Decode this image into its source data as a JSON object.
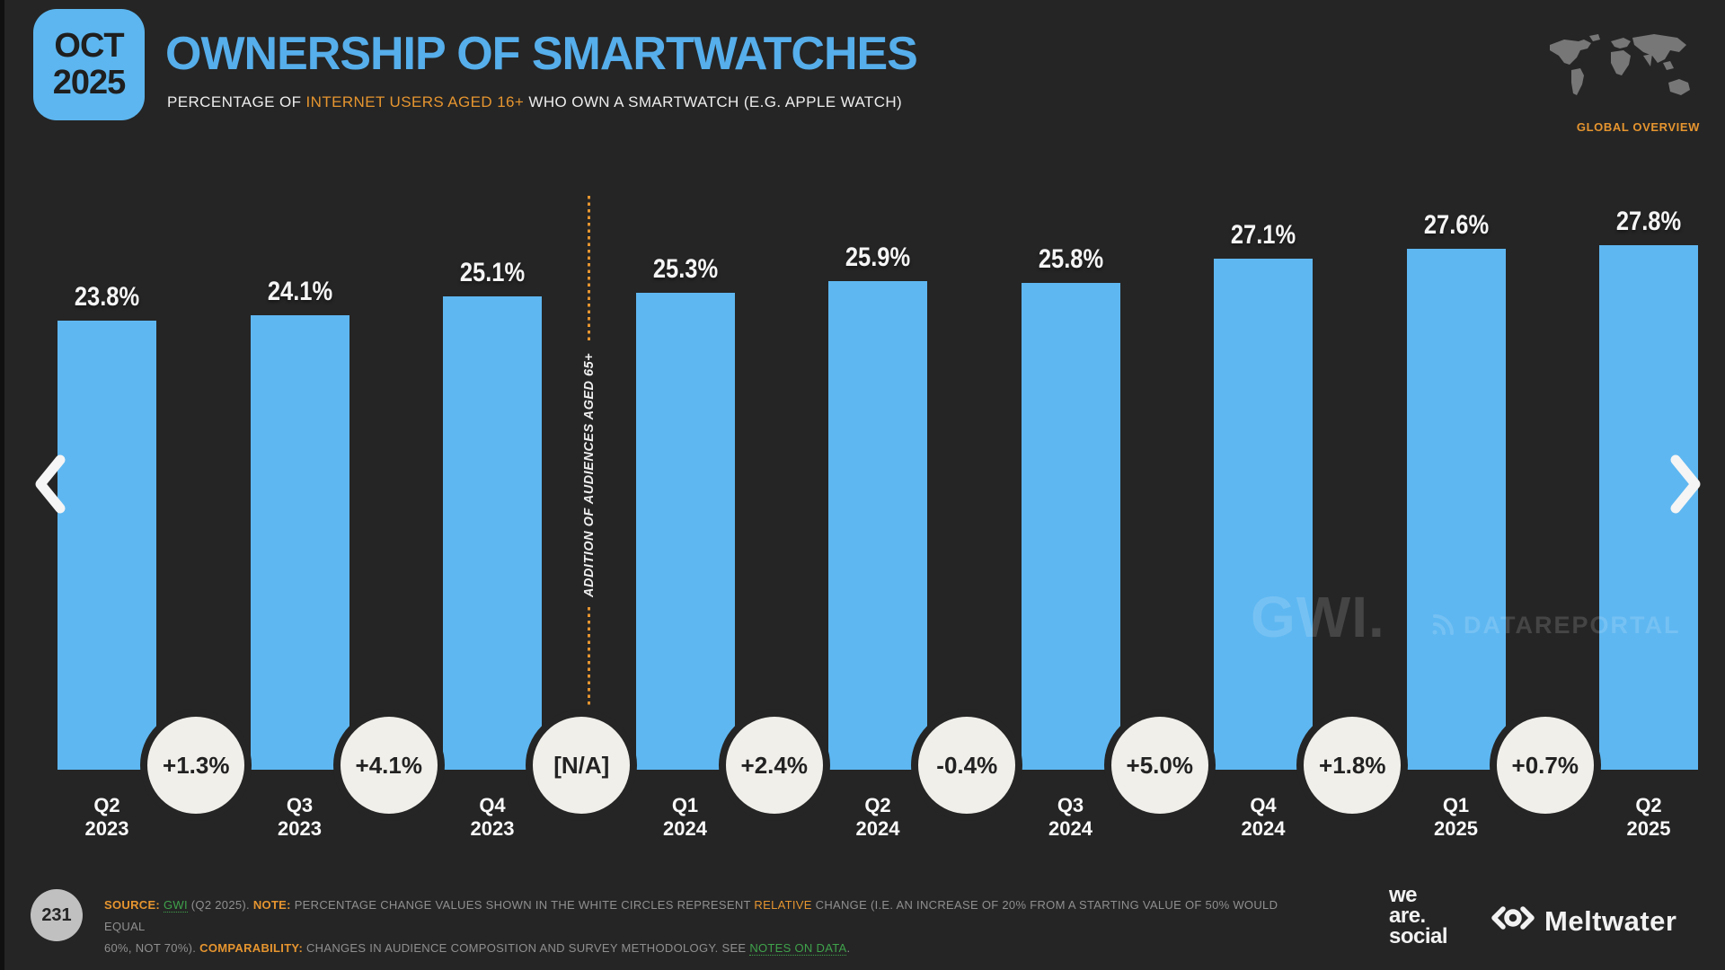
{
  "slide": {
    "badge": {
      "month": "OCT",
      "year": "2025"
    },
    "title": "OWNERSHIP OF SMARTWATCHES",
    "subtitle": {
      "prefix": "PERCENTAGE OF ",
      "highlight": "INTERNET USERS AGED 16+",
      "suffix": " WHO OWN A SMARTWATCH (E.G. APPLE WATCH)"
    },
    "region_label": "GLOBAL OVERVIEW",
    "page_number": "231"
  },
  "chart_data": {
    "type": "bar",
    "title": "OWNERSHIP OF SMARTWATCHES",
    "subtitle": "PERCENTAGE OF INTERNET USERS AGED 16+ WHO OWN A SMARTWATCH (E.G. APPLE WATCH)",
    "categories": [
      "Q2 2023",
      "Q3 2023",
      "Q4 2023",
      "Q1 2024",
      "Q2 2024",
      "Q3 2024",
      "Q4 2024",
      "Q1 2025",
      "Q2 2025"
    ],
    "values": [
      23.8,
      24.1,
      25.1,
      25.3,
      25.9,
      25.8,
      27.1,
      27.6,
      27.8
    ],
    "value_labels": [
      "23.8%",
      "24.1%",
      "25.1%",
      "25.3%",
      "25.9%",
      "25.8%",
      "27.1%",
      "27.6%",
      "27.8%"
    ],
    "relative_changes": [
      "+1.3%",
      "+4.1%",
      "[N/A]",
      "+2.4%",
      "-0.4%",
      "+5.0%",
      "+1.8%",
      "+0.7%"
    ],
    "annotation": {
      "text": "ADDITION OF AUDIENCES AGED 65+",
      "between": [
        "Q4 2023",
        "Q1 2024"
      ]
    },
    "ylim": [
      0,
      30
    ],
    "grid": false,
    "legend": false,
    "bar_color": "#5eb7f1",
    "circle_color": "#f1efea",
    "annotation_color": "#e6952f"
  },
  "watermarks": {
    "gwi": "GWI.",
    "datareportal": "DATAREPORTAL"
  },
  "icons": {
    "prev": "chevron-left",
    "next": "chevron-right",
    "map": "world-map",
    "datareportal": "signal-icon",
    "meltwater": "eye-brackets-icon"
  },
  "footer": {
    "note_lines": [
      [
        {
          "t": "SOURCE: ",
          "s": "label"
        },
        {
          "t": "GWI",
          "s": "link"
        },
        {
          "t": " (Q2 2025). ",
          "s": "plain"
        },
        {
          "t": "NOTE: ",
          "s": "label"
        },
        {
          "t": "PERCENTAGE CHANGE VALUES SHOWN IN THE WHITE CIRCLES REPRESENT ",
          "s": "plain"
        },
        {
          "t": "RELATIVE",
          "s": "hl"
        },
        {
          "t": " CHANGE (I.E. AN INCREASE OF 20% FROM A STARTING VALUE OF 50% WOULD EQUAL",
          "s": "plain"
        }
      ],
      [
        {
          "t": "60%, NOT 70%). ",
          "s": "plain"
        },
        {
          "t": "COMPARABILITY: ",
          "s": "label"
        },
        {
          "t": "CHANGES IN AUDIENCE COMPOSITION AND SURVEY METHODOLOGY. SEE ",
          "s": "plain"
        },
        {
          "t": "NOTES ON DATA",
          "s": "link"
        },
        {
          "t": ".",
          "s": "plain"
        }
      ]
    ],
    "wearesocial_lines": [
      "we",
      "are.",
      "social"
    ],
    "meltwater": "Meltwater"
  }
}
